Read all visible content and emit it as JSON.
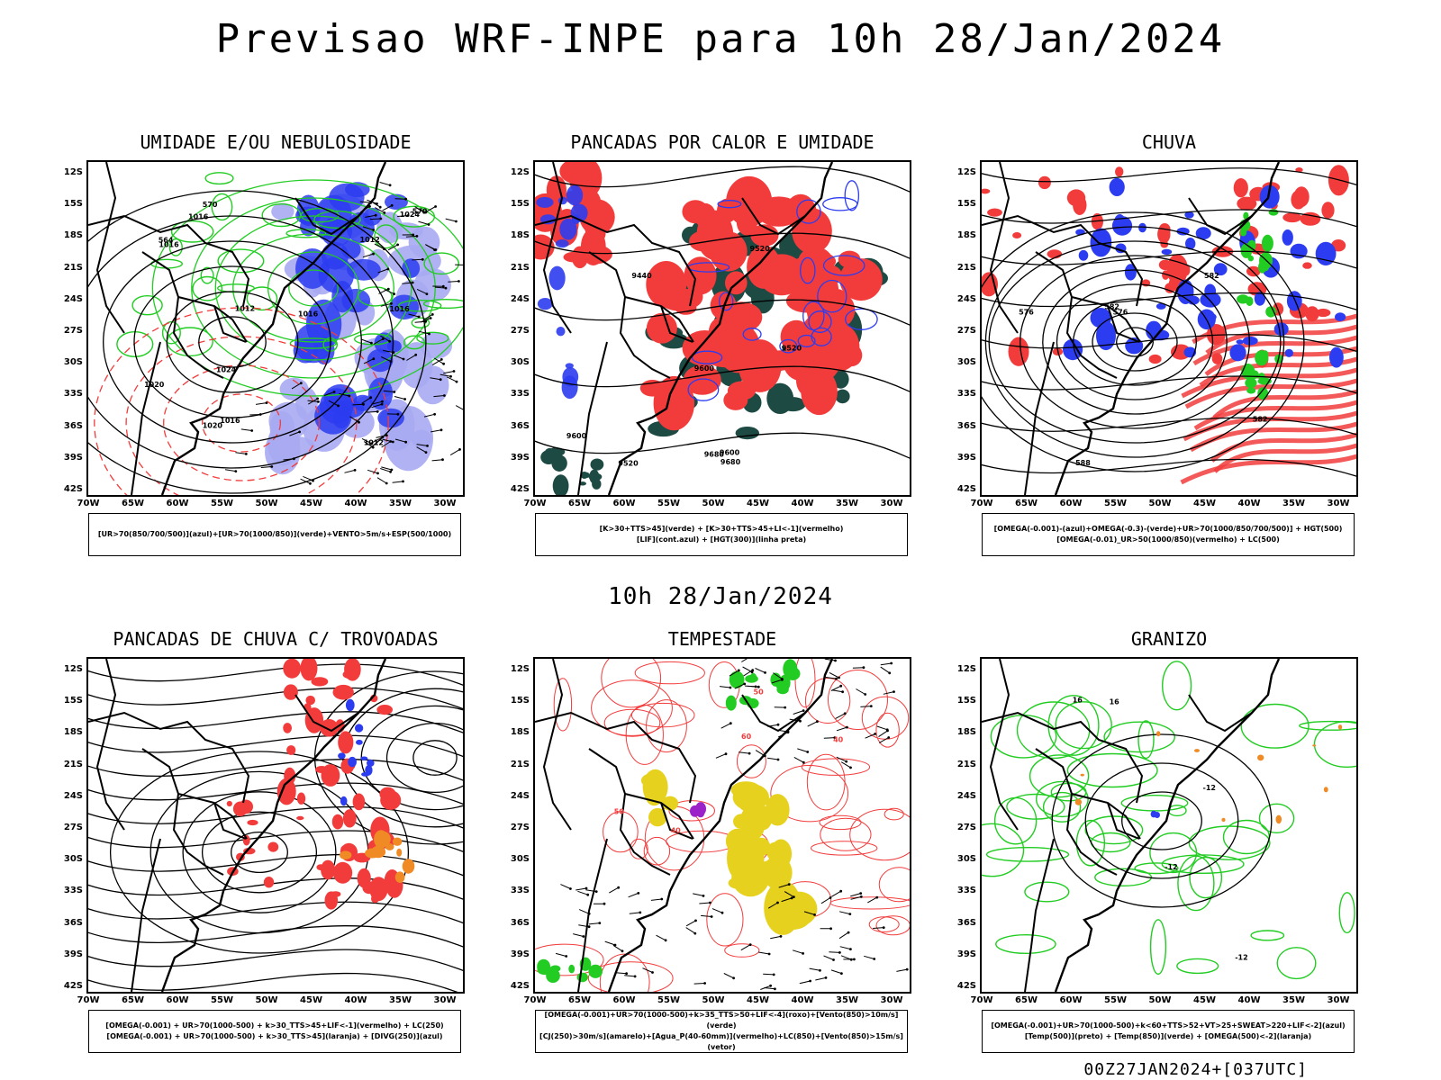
{
  "title": "Previsao WRF-INPE  para 10h 28/Jan/2024",
  "subtitle": "10h 28/Jan/2024",
  "footer": "00Z27JAN2024+[037UTC]",
  "axes": {
    "lat_labels": [
      "12S",
      "15S",
      "18S",
      "21S",
      "24S",
      "27S",
      "30S",
      "33S",
      "36S",
      "39S",
      "42S"
    ],
    "lon_labels": [
      "70W",
      "65W",
      "60W",
      "55W",
      "50W",
      "45W",
      "40W",
      "35W",
      "30W"
    ]
  },
  "colors": {
    "blue": "#2c3cf0",
    "lightblue": "#a9aaf2",
    "green": "#22cc22",
    "red": "#f23c3c",
    "darkgreen": "#1e4a44",
    "orange": "#f08a24",
    "yellow": "#e6d21e",
    "purple": "#9a22c8",
    "black": "#000000"
  },
  "panels": [
    {
      "id": "umidade",
      "title": "UMIDADE E/OU NEBULOSIDADE",
      "legend": [
        "[UR>70(850/700/500)](azul)+[UR>70(1000/850)](verde)+VENTO>5m/s+ESP(500/1000)"
      ],
      "contour_labels": [
        "1016",
        "1016",
        "1012",
        "1012",
        "1020",
        "1016",
        "1016",
        "1020",
        "1024",
        "1024",
        "1012",
        "570",
        "564",
        "570",
        "1016"
      ]
    },
    {
      "id": "pancadas-calor",
      "title": "PANCADAS POR CALOR E UMIDADE",
      "legend": [
        "[K>30+TTS>45](verde) + [K>30+TTS>45+LI<-1](vermelho)",
        "[LIF](cont.azul) + [HGT(300)](linha preta)"
      ],
      "contour_labels": [
        "9680",
        "9680",
        "9600",
        "9600",
        "9520",
        "9440",
        "9520",
        "9520",
        "9600"
      ]
    },
    {
      "id": "chuva",
      "title": "CHUVA",
      "legend": [
        "[OMEGA(-0.001)-(azul)+OMEGA(-0.3)-(verde)+UR>70(1000/850/700/500)] + HGT(500)",
        "[OMEGA(-0.01)_UR>50(1000/850)(vermelho) + LC(500)"
      ],
      "contour_labels": [
        "582",
        "576",
        "582",
        "588",
        "576",
        "582"
      ]
    },
    {
      "id": "trovoadas",
      "title": "PANCADAS DE CHUVA C/ TROVOADAS",
      "legend": [
        "[OMEGA(-0.001) + UR>70(1000-500) + k>30_TTS>45+LIF<-1](vermelho) + LC(250)",
        "[OMEGA(-0.001) + UR>70(1000-500) + k>30_TTS>45](laranja) + [DIVG(250)](azul)"
      ],
      "contour_labels": []
    },
    {
      "id": "tempestade",
      "title": "TEMPESTADE",
      "legend": [
        "[OMEGA(-0.001)+UR>70(1000-500)+k>35_TTS>50+LIF<-4](roxo)+[Vento(850)>10m/s](verde)",
        "[CJ(250)>30m/s](amarelo)+[Agua_P(40-60mm)](vermelho)+LC(850)+[Vento(850)>15m/s](vetor)"
      ],
      "contour_labels": [
        "40",
        "50",
        "40",
        "50",
        "60"
      ]
    },
    {
      "id": "granizo",
      "title": "GRANIZO",
      "legend": [
        "[OMEGA(-0.001)+UR>70(1000-500)+k<60+TTS>52+VT>25+SWEAT>220+LIF<-2](azul)",
        "[Temp(500)](preto) + [Temp(850)](verde) + [OMEGA(500)<-2](laranja)"
      ],
      "contour_labels": [
        "-12",
        "-12",
        "-12",
        "16",
        "16"
      ]
    }
  ]
}
